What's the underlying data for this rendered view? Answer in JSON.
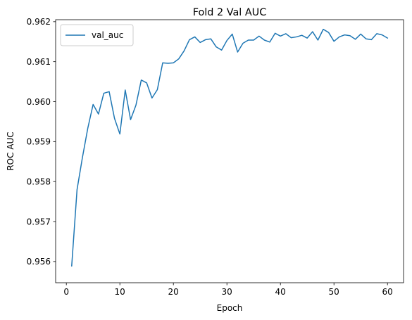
{
  "chart_data": {
    "type": "line",
    "title": "Fold 2 Val AUC",
    "xlabel": "Epoch",
    "ylabel": "ROC AUC",
    "xlim": [
      -2,
      63
    ],
    "ylim": [
      0.95547,
      0.96205
    ],
    "xticks": [
      0,
      10,
      20,
      30,
      40,
      50,
      60
    ],
    "yticks": [
      0.956,
      0.957,
      0.958,
      0.959,
      0.96,
      0.961,
      0.962
    ],
    "ytick_labels": [
      "0.956",
      "0.957",
      "0.958",
      "0.959",
      "0.960",
      "0.961",
      "0.962"
    ],
    "grid": false,
    "legend_position": "upper-left",
    "series": [
      {
        "name": "val_auc",
        "color": "#1f77b4",
        "x": [
          1,
          2,
          3,
          4,
          5,
          6,
          7,
          8,
          9,
          10,
          11,
          12,
          13,
          14,
          15,
          16,
          17,
          18,
          19,
          20,
          21,
          22,
          23,
          24,
          25,
          26,
          27,
          28,
          29,
          30,
          31,
          32,
          33,
          34,
          35,
          36,
          37,
          38,
          39,
          40,
          41,
          42,
          43,
          44,
          45,
          46,
          47,
          48,
          49,
          50,
          51,
          52,
          53,
          54,
          55,
          56,
          57,
          58,
          59,
          60
        ],
        "y": [
          0.95589,
          0.9578,
          0.9586,
          0.95933,
          0.95993,
          0.95969,
          0.96021,
          0.96025,
          0.95958,
          0.95919,
          0.96029,
          0.95955,
          0.95991,
          0.96054,
          0.96047,
          0.96009,
          0.9603,
          0.96097,
          0.96096,
          0.96097,
          0.96107,
          0.96127,
          0.96155,
          0.96162,
          0.96148,
          0.96155,
          0.96157,
          0.96137,
          0.96129,
          0.96153,
          0.96169,
          0.96124,
          0.96146,
          0.96154,
          0.96154,
          0.96164,
          0.96154,
          0.96149,
          0.96171,
          0.96164,
          0.9617,
          0.9616,
          0.96162,
          0.96166,
          0.96159,
          0.96175,
          0.96154,
          0.96181,
          0.96173,
          0.96151,
          0.96162,
          0.96167,
          0.96165,
          0.96156,
          0.96169,
          0.96157,
          0.96155,
          0.9617,
          0.96167,
          0.96159
        ]
      }
    ]
  }
}
